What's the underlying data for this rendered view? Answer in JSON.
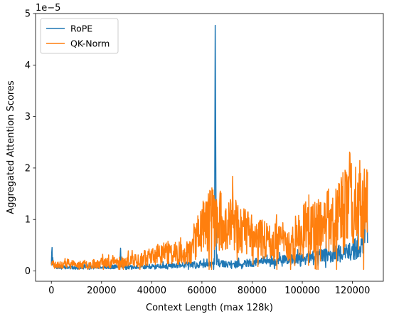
{
  "chart_data": {
    "type": "line",
    "title": "",
    "xlabel": "Context Length (max 128k)",
    "ylabel": "Aggregated Attention Scores",
    "y_offset_label": "1e−5",
    "xlim": [
      -6300,
      132300
    ],
    "ylim": [
      -0.2,
      5.0
    ],
    "x_ticks": [
      0,
      20000,
      40000,
      60000,
      80000,
      100000,
      120000
    ],
    "x_tick_labels": [
      "0",
      "20000",
      "40000",
      "60000",
      "80000",
      "100000",
      "120000"
    ],
    "y_ticks": [
      0,
      1,
      2,
      3,
      4,
      5
    ],
    "y_tick_labels": [
      "0",
      "1",
      "2",
      "3",
      "4",
      "5"
    ],
    "grid": false,
    "legend_position": "upper-left",
    "series": [
      {
        "name": "RoPE",
        "color": "#1f77b4",
        "anchors": [
          [
            0,
            0.9
          ],
          [
            200,
            3.2
          ],
          [
            600,
            1.2
          ],
          [
            1500,
            0.8
          ],
          [
            3000,
            0.7
          ],
          [
            6000,
            0.7
          ],
          [
            10000,
            0.6
          ],
          [
            12000,
            0.6
          ],
          [
            14000,
            0.8
          ],
          [
            16000,
            0.7
          ],
          [
            18000,
            0.8
          ],
          [
            20000,
            0.8
          ],
          [
            22000,
            0.7
          ],
          [
            25000,
            0.8
          ],
          [
            27200,
            0.9
          ],
          [
            27600,
            4.1
          ],
          [
            28000,
            0.9
          ],
          [
            30000,
            0.7
          ],
          [
            35000,
            0.8
          ],
          [
            40000,
            0.8
          ],
          [
            45000,
            1.0
          ],
          [
            50000,
            1.1
          ],
          [
            55000,
            1.2
          ],
          [
            60000,
            1.2
          ],
          [
            62000,
            1.3
          ],
          [
            64000,
            1.5
          ],
          [
            65000,
            1.9
          ],
          [
            65300,
            47.7
          ],
          [
            65700,
            1.8
          ],
          [
            67000,
            1.5
          ],
          [
            70000,
            1.3
          ],
          [
            75000,
            1.4
          ],
          [
            80000,
            1.6
          ],
          [
            85000,
            1.9
          ],
          [
            90000,
            2.0
          ],
          [
            95000,
            2.3
          ],
          [
            100000,
            2.6
          ],
          [
            105000,
            2.9
          ],
          [
            110000,
            3.1
          ],
          [
            115000,
            3.4
          ],
          [
            118000,
            3.6
          ],
          [
            120000,
            4.1
          ],
          [
            122000,
            4.6
          ],
          [
            124000,
            5.8
          ],
          [
            125000,
            7.5
          ],
          [
            125500,
            12.5
          ],
          [
            126000,
            8.5
          ]
        ],
        "noise": 0.7,
        "seed": 7
      },
      {
        "name": "QK-Norm",
        "color": "#ff7f0e",
        "anchors": [
          [
            0,
            1.3
          ],
          [
            2000,
            1.1
          ],
          [
            5000,
            1.2
          ],
          [
            10000,
            1.1
          ],
          [
            15000,
            1.3
          ],
          [
            20000,
            1.5
          ],
          [
            25000,
            1.7
          ],
          [
            30000,
            1.8
          ],
          [
            35000,
            2.2
          ],
          [
            40000,
            2.8
          ],
          [
            45000,
            3.6
          ],
          [
            50000,
            3.4
          ],
          [
            53000,
            3.6
          ],
          [
            56000,
            4.0
          ],
          [
            58000,
            6.8
          ],
          [
            60000,
            8.8
          ],
          [
            62000,
            9.5
          ],
          [
            64000,
            10.5
          ],
          [
            66000,
            9.8
          ],
          [
            68000,
            9.5
          ],
          [
            70000,
            9.0
          ],
          [
            72000,
            8.8
          ],
          [
            75000,
            8.5
          ],
          [
            78000,
            7.5
          ],
          [
            80000,
            7.0
          ],
          [
            82000,
            6.5
          ],
          [
            85000,
            6.0
          ],
          [
            88000,
            5.6
          ],
          [
            90000,
            5.8
          ],
          [
            92000,
            5.2
          ],
          [
            95000,
            5.5
          ],
          [
            98000,
            6.5
          ],
          [
            100000,
            7.5
          ],
          [
            102000,
            9.0
          ],
          [
            104000,
            8.0
          ],
          [
            106000,
            8.5
          ],
          [
            108000,
            9.5
          ],
          [
            110000,
            10.0
          ],
          [
            112000,
            9.8
          ],
          [
            114000,
            10.5
          ],
          [
            116000,
            11.5
          ],
          [
            118000,
            12.5
          ],
          [
            120000,
            14.0
          ],
          [
            122000,
            13.5
          ],
          [
            124000,
            13.0
          ],
          [
            125000,
            14.0
          ],
          [
            126000,
            12.0
          ]
        ],
        "noise": 0.9,
        "seed": 23
      }
    ]
  }
}
